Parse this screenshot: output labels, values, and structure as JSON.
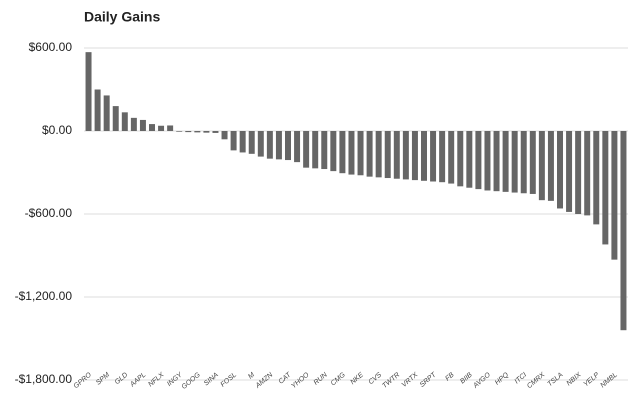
{
  "chart_data": {
    "type": "bar",
    "title": "Daily Gains",
    "categories": [
      "GPRO",
      null,
      "SPM",
      null,
      "GLD",
      null,
      "AAPL",
      null,
      "NFLX",
      null,
      "INGY",
      null,
      "GOOG",
      null,
      "SINA",
      null,
      "FOSL",
      null,
      "M",
      null,
      "AMZN",
      null,
      "CAT",
      null,
      "YHOO",
      null,
      "RUN",
      null,
      "CMG",
      null,
      "NKE",
      null,
      "CVS",
      null,
      "TWTR",
      null,
      "VRTX",
      null,
      "SRPT",
      null,
      "FB",
      null,
      "BIIB",
      null,
      "AVGO",
      null,
      "HPQ",
      null,
      "ITCI",
      null,
      "CMRX",
      null,
      "TSLA",
      null,
      "NBIX",
      null,
      "YELP",
      null,
      "NMBL",
      null
    ],
    "values": [
      570,
      300,
      257,
      180,
      135,
      95,
      80,
      50,
      38,
      40,
      -5,
      -8,
      -10,
      -12,
      -14,
      -60,
      -140,
      -155,
      -165,
      -185,
      -200,
      -205,
      -210,
      -225,
      -265,
      -270,
      -275,
      -290,
      -305,
      -315,
      -320,
      -330,
      -335,
      -340,
      -345,
      -350,
      -355,
      -360,
      -365,
      -370,
      -380,
      -400,
      -410,
      -420,
      -430,
      -435,
      -440,
      -445,
      -450,
      -455,
      -500,
      -505,
      -560,
      -585,
      -600,
      -610,
      -675,
      -820,
      -930,
      -1440
    ],
    "color": "#666666",
    "ylim": [
      -1800,
      600
    ],
    "yticks": [
      {
        "value": 600,
        "label": "$600.00"
      },
      {
        "value": 0,
        "label": "$0.00"
      },
      {
        "value": -600,
        "label": "-$600.00"
      },
      {
        "value": -1200,
        "label": "-$1,200.00"
      },
      {
        "value": -1800,
        "label": "-$1,800.00"
      }
    ],
    "grid": true
  }
}
